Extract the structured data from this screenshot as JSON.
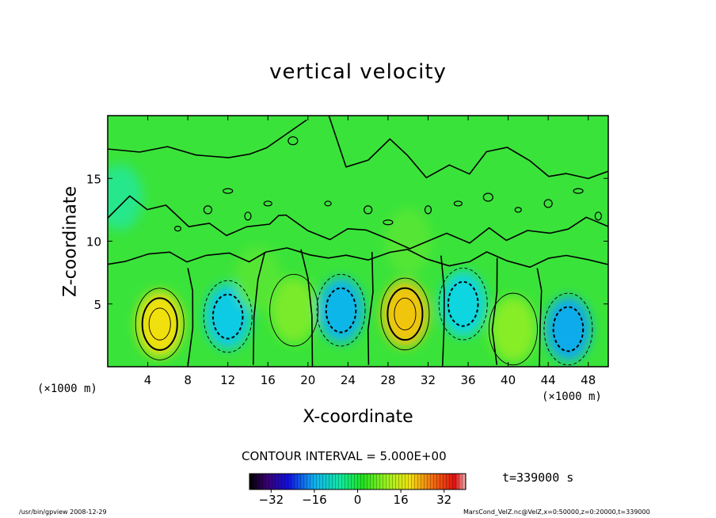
{
  "chart_data": {
    "type": "heatmap",
    "title": "vertical velocity",
    "xlabel": "X-coordinate",
    "ylabel": "Z-coordinate",
    "x_unit_label": "(×1000 m)",
    "xlim": [
      0,
      50
    ],
    "ylim": [
      0,
      20
    ],
    "x_ticks": [
      4,
      8,
      12,
      16,
      20,
      24,
      28,
      32,
      36,
      40,
      44,
      48
    ],
    "y_ticks": [
      5,
      10,
      15
    ],
    "contour_interval_label": "CONTOUR INTERVAL = 5.000E+00",
    "colorbar": {
      "range": [
        -40,
        40
      ],
      "ticks": [
        -32,
        -16,
        0,
        16,
        32
      ],
      "colormap": "rainbow"
    },
    "features": [
      {
        "x": 5.2,
        "z": 3.4,
        "value": 16
      },
      {
        "x": 12.0,
        "z": 4.0,
        "value": -11
      },
      {
        "x": 18.6,
        "z": 4.5,
        "value": 5
      },
      {
        "x": 23.3,
        "z": 4.5,
        "value": -13
      },
      {
        "x": 29.7,
        "z": 4.2,
        "value": 18
      },
      {
        "x": 35.5,
        "z": 5.0,
        "value": -10
      },
      {
        "x": 40.5,
        "z": 3.0,
        "value": 6
      },
      {
        "x": 46.0,
        "z": 3.0,
        "value": -14
      },
      {
        "x": 15.0,
        "z": 7.0,
        "value": 2
      },
      {
        "x": 1.2,
        "z": 13.5,
        "value": -4
      },
      {
        "x": 30.0,
        "z": 10.0,
        "value": 2
      }
    ],
    "time_label": "t=339000 s"
  },
  "footer": {
    "left": "/usr/bin/gpview   2008-12-29",
    "right": "MarsCond_VelZ.nc@VelZ,x=0:50000,z=0:20000,t=339000"
  },
  "colors": {
    "background_green": "#3ae33a",
    "positive": "#f0e010",
    "negative": "#10f0e0"
  }
}
